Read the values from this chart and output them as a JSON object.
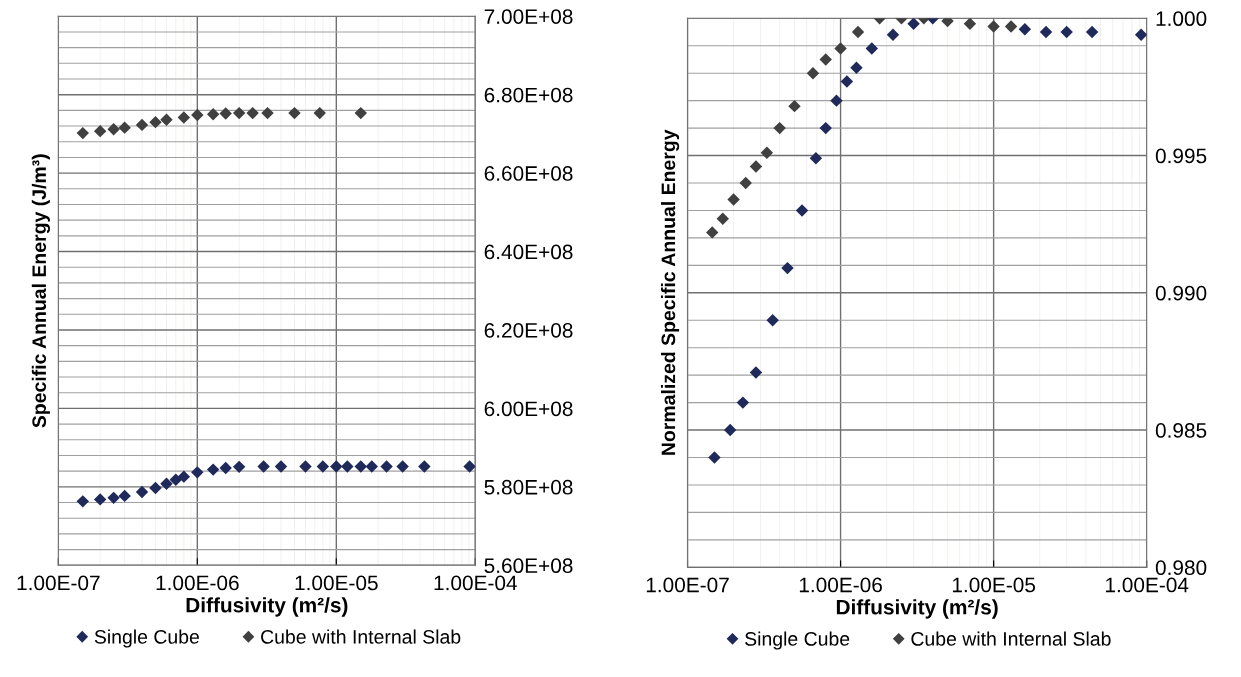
{
  "chart_data": [
    {
      "type": "scatter",
      "xlabel": "Diffusivity (m²/s)",
      "ylabel": "Specific Annual Energy (J/m³)",
      "log": "x",
      "grid": true,
      "legend": "bottom",
      "marker": "diamond",
      "xlim": [
        1e-07,
        0.0001
      ],
      "xticks": [
        {
          "value": 1e-07,
          "label": "1.00E-07"
        },
        {
          "value": 1e-06,
          "label": "1.00E-06"
        },
        {
          "value": 1e-05,
          "label": "1.00E-05"
        },
        {
          "value": 0.0001,
          "label": "1.00E-04"
        }
      ],
      "ylim": [
        560000000.0,
        700000000.0
      ],
      "yticks": [
        {
          "value": 560000000.0,
          "label": "5.60E+08"
        },
        {
          "value": 580000000.0,
          "label": "5.80E+08"
        },
        {
          "value": 600000000.0,
          "label": "6.00E+08"
        },
        {
          "value": 620000000.0,
          "label": "6.20E+08"
        },
        {
          "value": 640000000.0,
          "label": "6.40E+08"
        },
        {
          "value": 660000000.0,
          "label": "6.60E+08"
        },
        {
          "value": 680000000.0,
          "label": "6.80E+08"
        },
        {
          "value": 700000000.0,
          "label": "7.00E+08"
        }
      ],
      "series": [
        {
          "name": "Single Cube",
          "color": "#1f2a5a",
          "x": [
            1.5e-07,
            2e-07,
            2.5e-07,
            3e-07,
            4e-07,
            5e-07,
            6e-07,
            7e-07,
            8e-07,
            1e-06,
            1.3e-06,
            1.6e-06,
            2e-06,
            3e-06,
            4e-06,
            6e-06,
            8e-06,
            1e-05,
            1.2e-05,
            1.5e-05,
            1.8e-05,
            2.3e-05,
            3e-05,
            4.3e-05,
            9.1e-05
          ],
          "values": [
            576300000.0,
            576800000.0,
            577200000.0,
            577700000.0,
            578700000.0,
            579700000.0,
            580800000.0,
            581800000.0,
            582600000.0,
            583700000.0,
            584400000.0,
            584800000.0,
            585100000.0,
            585200000.0,
            585200000.0,
            585200000.0,
            585200000.0,
            585200000.0,
            585200000.0,
            585200000.0,
            585200000.0,
            585200000.0,
            585200000.0,
            585200000.0,
            585200000.0
          ]
        },
        {
          "name": "Cube with Internal Slab",
          "color": "#404040",
          "x": [
            1.5e-07,
            2e-07,
            2.5e-07,
            3e-07,
            4e-07,
            5e-07,
            6e-07,
            8e-07,
            1e-06,
            1.3e-06,
            1.6e-06,
            2e-06,
            2.5e-06,
            3.2e-06,
            5e-06,
            7.6e-06,
            1.5e-05
          ],
          "values": [
            670200000.0,
            670700000.0,
            671200000.0,
            671600000.0,
            672300000.0,
            673000000.0,
            673600000.0,
            674200000.0,
            674800000.0,
            675000000.0,
            675200000.0,
            675300000.0,
            675300000.0,
            675300000.0,
            675300000.0,
            675300000.0,
            675300000.0
          ]
        }
      ]
    },
    {
      "type": "scatter",
      "xlabel": "Diffusivity (m²/s)",
      "ylabel": "Normalized Specific Annual Energy",
      "log": "x",
      "grid": true,
      "legend": "bottom",
      "marker": "diamond",
      "xlim": [
        1e-07,
        0.0001
      ],
      "xticks": [
        {
          "value": 1e-07,
          "label": "1.00E-07"
        },
        {
          "value": 1e-06,
          "label": "1.00E-06"
        },
        {
          "value": 1e-05,
          "label": "1.00E-05"
        },
        {
          "value": 0.0001,
          "label": "1.00E-04"
        }
      ],
      "ylim": [
        0.98,
        1.0
      ],
      "yticks": [
        {
          "value": 0.98,
          "label": "0.980"
        },
        {
          "value": 0.985,
          "label": "0.985"
        },
        {
          "value": 0.99,
          "label": "0.990"
        },
        {
          "value": 0.995,
          "label": "0.995"
        },
        {
          "value": 1.0,
          "label": "1.000"
        }
      ],
      "series": [
        {
          "name": "Single Cube",
          "color": "#1f2a5a",
          "x": [
            1.5e-07,
            1.9e-07,
            2.3e-07,
            2.8e-07,
            3.6e-07,
            4.5e-07,
            5.6e-07,
            6.9e-07,
            8e-07,
            9.4e-07,
            1.1e-06,
            1.27e-06,
            1.6e-06,
            2.2e-06,
            3e-06,
            4e-06,
            5e-06,
            7e-06,
            1e-05,
            1.3e-05,
            1.6e-05,
            2.2e-05,
            3e-05,
            4.4e-05,
            9.2e-05
          ],
          "values": [
            0.984,
            0.985,
            0.986,
            0.9871,
            0.989,
            0.9909,
            0.993,
            0.9949,
            0.996,
            0.997,
            0.9977,
            0.9982,
            0.9989,
            0.9994,
            0.9998,
            1.0,
            null,
            null,
            null,
            null,
            0.9996,
            0.9995,
            0.9995,
            0.9995,
            0.9994
          ]
        },
        {
          "name": "Cube with Internal Slab",
          "color": "#404040",
          "x": [
            1.45e-07,
            1.7e-07,
            2e-07,
            2.4e-07,
            2.8e-07,
            3.3e-07,
            4e-07,
            5e-07,
            6.6e-07,
            8e-07,
            1e-06,
            1.3e-06,
            1.8e-06,
            2.5e-06,
            3.5e-06,
            5e-06,
            7e-06,
            1e-05,
            1.3e-05
          ],
          "values": [
            0.9922,
            0.9927,
            0.9934,
            0.994,
            0.9946,
            0.9951,
            0.996,
            0.9968,
            0.998,
            0.9985,
            0.9989,
            0.9995,
            1.0,
            1.0,
            1.0,
            0.9999,
            0.9998,
            0.9997,
            0.9997
          ]
        }
      ]
    }
  ]
}
